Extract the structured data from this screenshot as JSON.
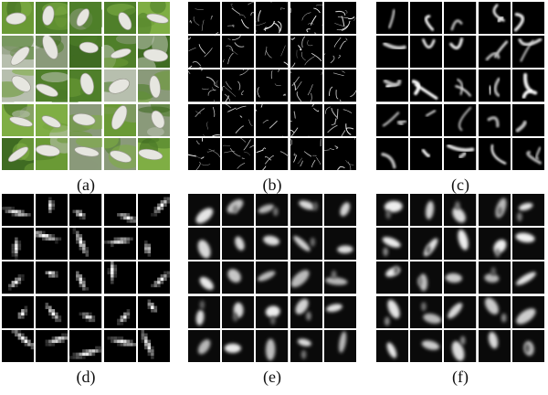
{
  "figure": {
    "panels": [
      {
        "id": "a",
        "label": "(a)",
        "style": "photo"
      },
      {
        "id": "b",
        "label": "(b)",
        "style": "edges"
      },
      {
        "id": "c",
        "label": "(c)",
        "style": "streaks"
      },
      {
        "id": "d",
        "label": "(d)",
        "style": "blocky"
      },
      {
        "id": "e",
        "label": "(e)",
        "style": "blurred"
      },
      {
        "id": "f",
        "label": "(f)",
        "style": "blurred"
      }
    ]
  },
  "colors": {
    "grid_line": "#ffffff",
    "cell_background": "#000000",
    "leaf_green": "#5c8f2f",
    "moth_white": "#e6e6e0"
  }
}
